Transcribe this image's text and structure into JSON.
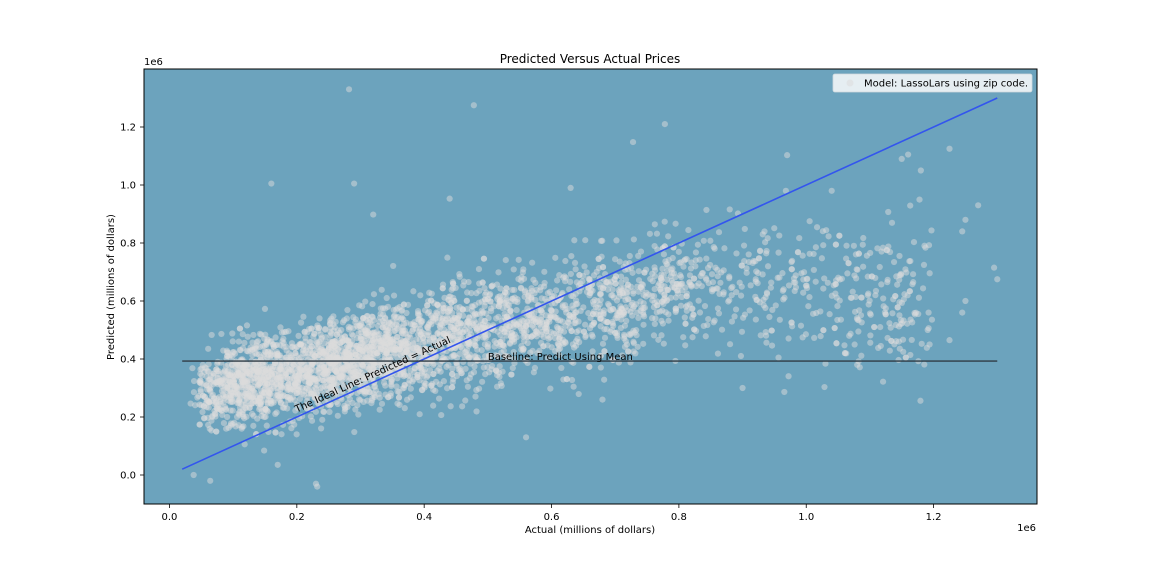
{
  "chart_data": {
    "type": "scatter",
    "title": "Predicted Versus Actual Prices",
    "xlabel": "Actual (millions of dollars)",
    "ylabel": "Predicted (millions of dollars)",
    "x_offset_label": "1e6",
    "y_offset_label": "1e6",
    "xlim": [
      -0.04,
      1.3624
    ],
    "ylim": [
      -0.1,
      1.4
    ],
    "xticks": [
      0.0,
      0.2,
      0.4,
      0.6,
      0.8,
      1.0,
      1.2
    ],
    "yticks": [
      0.0,
      0.2,
      0.4,
      0.6,
      0.8,
      1.0,
      1.2
    ],
    "xtick_labels": [
      "0.0",
      "0.2",
      "0.4",
      "0.6",
      "0.8",
      "1.0",
      "1.2"
    ],
    "ytick_labels": [
      "0.0",
      "0.2",
      "0.4",
      "0.6",
      "0.8",
      "1.0",
      "1.2"
    ],
    "grid": false,
    "background_color": "#6ca3bd",
    "point_color": "#dcdcdc",
    "legend": {
      "placement": "upper right",
      "label": "Model: LassoLars using zip code."
    },
    "ideal_line": {
      "x": [
        0.02,
        1.3
      ],
      "y": [
        0.02,
        1.3
      ],
      "color": "#3355ee",
      "label": "The Ideal Line: Predicted = Actual"
    },
    "baseline": {
      "x": [
        0.02,
        1.3
      ],
      "y": 0.393,
      "color": "#2f3b44",
      "label": "Baseline: Predict Using Mean"
    },
    "outliers": [
      {
        "x": 0.282,
        "y": 1.33
      },
      {
        "x": 0.478,
        "y": 1.275
      },
      {
        "x": 0.778,
        "y": 1.21
      },
      {
        "x": 0.728,
        "y": 1.148
      },
      {
        "x": 0.97,
        "y": 1.103
      },
      {
        "x": 1.16,
        "y": 1.105
      },
      {
        "x": 1.225,
        "y": 1.125
      },
      {
        "x": 1.15,
        "y": 1.09
      },
      {
        "x": 0.16,
        "y": 1.005
      },
      {
        "x": 0.29,
        "y": 1.005
      },
      {
        "x": 0.63,
        "y": 0.99
      },
      {
        "x": 0.44,
        "y": 0.953
      },
      {
        "x": 0.32,
        "y": 0.898
      },
      {
        "x": 1.18,
        "y": 1.05
      },
      {
        "x": 0.968,
        "y": 0.98
      },
      {
        "x": 1.04,
        "y": 0.98
      },
      {
        "x": 0.23,
        "y": -0.03
      },
      {
        "x": 0.232,
        "y": -0.04
      },
      {
        "x": 0.064,
        "y": -0.02
      },
      {
        "x": 0.038,
        "y": 0.0
      },
      {
        "x": 0.17,
        "y": 0.035
      },
      {
        "x": 0.56,
        "y": 0.13
      },
      {
        "x": 1.3,
        "y": 0.675
      },
      {
        "x": 1.295,
        "y": 0.715
      },
      {
        "x": 1.27,
        "y": 0.93
      },
      {
        "x": 1.25,
        "y": 0.88
      },
      {
        "x": 1.245,
        "y": 0.84
      },
      {
        "x": 1.25,
        "y": 0.6
      },
      {
        "x": 1.245,
        "y": 0.56
      },
      {
        "x": 1.225,
        "y": 0.465
      },
      {
        "x": 1.08,
        "y": 0.38
      },
      {
        "x": 0.9,
        "y": 0.3
      },
      {
        "x": 0.68,
        "y": 0.26
      }
    ]
  }
}
